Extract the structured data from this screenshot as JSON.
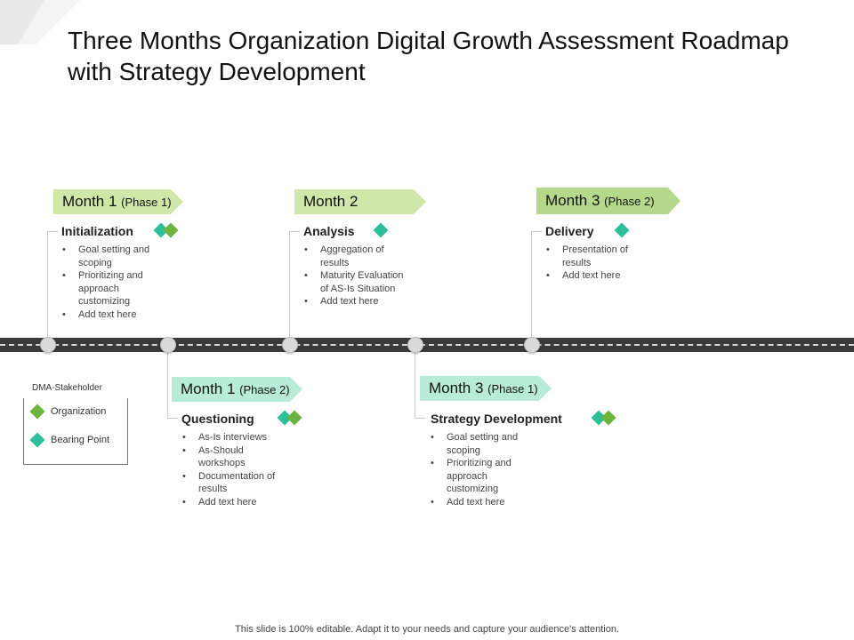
{
  "title": "Three Months Organization Digital Growth  Assessment Roadmap with Strategy Development",
  "colors": {
    "organization": "#2ebf9a",
    "bearing_point": "#6cb33f",
    "tag_light_green": "#cfe8a9",
    "tag_mid_green": "#b5d98a",
    "tag_mint": "#b8ecd9",
    "road": "#3a3a3a"
  },
  "phases": [
    {
      "month": "Month 1",
      "phase": "(Phase 1)",
      "heading": "Initialization",
      "items": [
        "Goal setting and scoping",
        "Prioritizing and approach customizing",
        "Add text here"
      ]
    },
    {
      "month": "Month 2",
      "phase": "",
      "heading": "Analysis",
      "items": [
        "Aggregation of results",
        "Maturity Evaluation of AS-Is Situation",
        "Add text here"
      ]
    },
    {
      "month": "Month 3",
      "phase": "(Phase 2)",
      "heading": "Delivery",
      "items": [
        "Presentation of results",
        "Add text here"
      ]
    },
    {
      "month": "Month 1",
      "phase": "(Phase 2)",
      "heading": "Questioning",
      "items": [
        "As-Is interviews",
        "As-Should workshops",
        "Documentation of results",
        "Add text here"
      ]
    },
    {
      "month": "Month 3",
      "phase": "(Phase 1)",
      "heading": "Strategy Development",
      "items": [
        "Goal setting and scoping",
        "Prioritizing and approach customizing",
        "Add text here"
      ]
    }
  ],
  "legend": {
    "title": "DMA-Stakeholder",
    "items": [
      {
        "label": "Organization",
        "color": "#2ebf9a"
      },
      {
        "label": "Bearing Point",
        "color": "#6cb33f"
      }
    ]
  },
  "footer": "This slide is 100% editable. Adapt it to your needs and capture your audience's attention."
}
